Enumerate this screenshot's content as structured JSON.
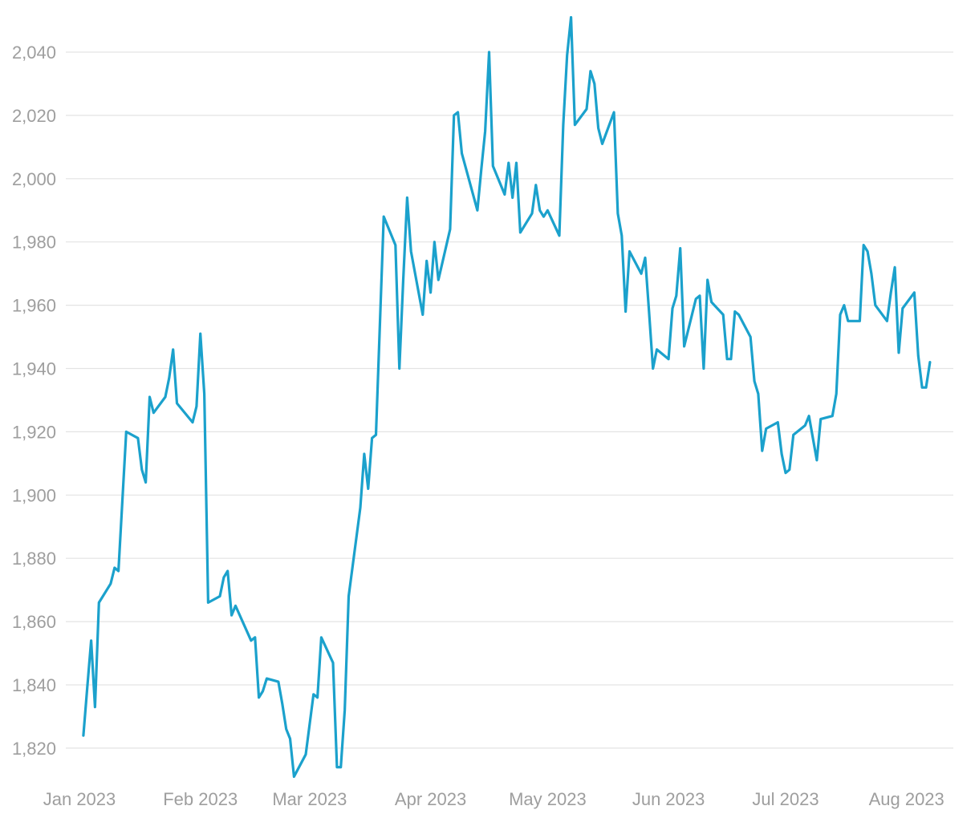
{
  "chart_data": {
    "type": "line",
    "title": "",
    "xlabel": "",
    "ylabel": "",
    "grid": true,
    "legend": "none",
    "line_color": "#1ba1cc",
    "ylim": [
      1810,
      2052
    ],
    "xlim": [
      "2023-01-01",
      "2023-08-06"
    ],
    "y_ticks": [
      1820,
      1840,
      1860,
      1880,
      1900,
      1920,
      1940,
      1960,
      1980,
      2000,
      2020,
      2040
    ],
    "y_tick_labels": [
      "1,820",
      "1,840",
      "1,860",
      "1,880",
      "1,900",
      "1,920",
      "1,940",
      "1,960",
      "1,980",
      "2,000",
      "2,020",
      "2,040"
    ],
    "x_ticks": [
      "2023-01-01",
      "2023-02-01",
      "2023-03-01",
      "2023-04-01",
      "2023-05-01",
      "2023-06-01",
      "2023-07-01",
      "2023-08-01"
    ],
    "x_tick_labels": [
      "Jan 2023",
      "Feb 2023",
      "Mar 2023",
      "Apr 2023",
      "May 2023",
      "Jun 2023",
      "Jul 2023",
      "Aug 2023"
    ],
    "series": [
      {
        "points": [
          [
            "2023-01-02",
            1824
          ],
          [
            "2023-01-03",
            1839
          ],
          [
            "2023-01-04",
            1854
          ],
          [
            "2023-01-05",
            1833
          ],
          [
            "2023-01-06",
            1866
          ],
          [
            "2023-01-09",
            1872
          ],
          [
            "2023-01-10",
            1877
          ],
          [
            "2023-01-11",
            1876
          ],
          [
            "2023-01-13",
            1920
          ],
          [
            "2023-01-16",
            1918
          ],
          [
            "2023-01-17",
            1908
          ],
          [
            "2023-01-18",
            1904
          ],
          [
            "2023-01-19",
            1931
          ],
          [
            "2023-01-20",
            1926
          ],
          [
            "2023-01-23",
            1931
          ],
          [
            "2023-01-24",
            1937
          ],
          [
            "2023-01-25",
            1946
          ],
          [
            "2023-01-26",
            1929
          ],
          [
            "2023-01-30",
            1923
          ],
          [
            "2023-01-31",
            1928
          ],
          [
            "2023-02-01",
            1951
          ],
          [
            "2023-02-02",
            1932
          ],
          [
            "2023-02-03",
            1866
          ],
          [
            "2023-02-06",
            1868
          ],
          [
            "2023-02-07",
            1874
          ],
          [
            "2023-02-08",
            1876
          ],
          [
            "2023-02-09",
            1862
          ],
          [
            "2023-02-10",
            1865
          ],
          [
            "2023-02-14",
            1854
          ],
          [
            "2023-02-15",
            1855
          ],
          [
            "2023-02-16",
            1836
          ],
          [
            "2023-02-17",
            1838
          ],
          [
            "2023-02-18",
            1842
          ],
          [
            "2023-02-21",
            1841
          ],
          [
            "2023-02-22",
            1834
          ],
          [
            "2023-02-23",
            1826
          ],
          [
            "2023-02-24",
            1823
          ],
          [
            "2023-02-25",
            1811
          ],
          [
            "2023-02-28",
            1818
          ],
          [
            "2023-03-02",
            1837
          ],
          [
            "2023-03-03",
            1836
          ],
          [
            "2023-03-04",
            1855
          ],
          [
            "2023-03-07",
            1847
          ],
          [
            "2023-03-08",
            1814
          ],
          [
            "2023-03-09",
            1814
          ],
          [
            "2023-03-10",
            1832
          ],
          [
            "2023-03-11",
            1868
          ],
          [
            "2023-03-14",
            1896
          ],
          [
            "2023-03-15",
            1913
          ],
          [
            "2023-03-16",
            1902
          ],
          [
            "2023-03-17",
            1918
          ],
          [
            "2023-03-18",
            1919
          ],
          [
            "2023-03-20",
            1988
          ],
          [
            "2023-03-23",
            1979
          ],
          [
            "2023-03-24",
            1940
          ],
          [
            "2023-03-25",
            1968
          ],
          [
            "2023-03-26",
            1994
          ],
          [
            "2023-03-27",
            1977
          ],
          [
            "2023-03-30",
            1957
          ],
          [
            "2023-03-31",
            1974
          ],
          [
            "2023-04-01",
            1964
          ],
          [
            "2023-04-02",
            1980
          ],
          [
            "2023-04-03",
            1968
          ],
          [
            "2023-04-06",
            1984
          ],
          [
            "2023-04-07",
            2020
          ],
          [
            "2023-04-08",
            2021
          ],
          [
            "2023-04-09",
            2008
          ],
          [
            "2023-04-13",
            1990
          ],
          [
            "2023-04-14",
            2003
          ],
          [
            "2023-04-15",
            2015
          ],
          [
            "2023-04-16",
            2040
          ],
          [
            "2023-04-17",
            2004
          ],
          [
            "2023-04-20",
            1995
          ],
          [
            "2023-04-21",
            2005
          ],
          [
            "2023-04-22",
            1994
          ],
          [
            "2023-04-23",
            2005
          ],
          [
            "2023-04-24",
            1983
          ],
          [
            "2023-04-27",
            1989
          ],
          [
            "2023-04-28",
            1998
          ],
          [
            "2023-04-29",
            1990
          ],
          [
            "2023-04-30",
            1988
          ],
          [
            "2023-05-01",
            1990
          ],
          [
            "2023-05-04",
            1982
          ],
          [
            "2023-05-05",
            2017
          ],
          [
            "2023-05-06",
            2039
          ],
          [
            "2023-05-07",
            2051
          ],
          [
            "2023-05-08",
            2017
          ],
          [
            "2023-05-11",
            2022
          ],
          [
            "2023-05-12",
            2034
          ],
          [
            "2023-05-13",
            2030
          ],
          [
            "2023-05-14",
            2016
          ],
          [
            "2023-05-15",
            2011
          ],
          [
            "2023-05-18",
            2021
          ],
          [
            "2023-05-19",
            1989
          ],
          [
            "2023-05-20",
            1982
          ],
          [
            "2023-05-21",
            1958
          ],
          [
            "2023-05-22",
            1977
          ],
          [
            "2023-05-25",
            1970
          ],
          [
            "2023-05-26",
            1975
          ],
          [
            "2023-05-27",
            1958
          ],
          [
            "2023-05-28",
            1940
          ],
          [
            "2023-05-29",
            1946
          ],
          [
            "2023-06-01",
            1943
          ],
          [
            "2023-06-02",
            1959
          ],
          [
            "2023-06-03",
            1963
          ],
          [
            "2023-06-04",
            1978
          ],
          [
            "2023-06-05",
            1947
          ],
          [
            "2023-06-08",
            1962
          ],
          [
            "2023-06-09",
            1963
          ],
          [
            "2023-06-10",
            1940
          ],
          [
            "2023-06-11",
            1968
          ],
          [
            "2023-06-12",
            1961
          ],
          [
            "2023-06-15",
            1957
          ],
          [
            "2023-06-16",
            1943
          ],
          [
            "2023-06-17",
            1943
          ],
          [
            "2023-06-18",
            1958
          ],
          [
            "2023-06-19",
            1957
          ],
          [
            "2023-06-22",
            1950
          ],
          [
            "2023-06-23",
            1936
          ],
          [
            "2023-06-24",
            1932
          ],
          [
            "2023-06-25",
            1914
          ],
          [
            "2023-06-26",
            1921
          ],
          [
            "2023-06-29",
            1923
          ],
          [
            "2023-06-30",
            1913
          ],
          [
            "2023-07-01",
            1907
          ],
          [
            "2023-07-02",
            1908
          ],
          [
            "2023-07-03",
            1919
          ],
          [
            "2023-07-06",
            1922
          ],
          [
            "2023-07-07",
            1925
          ],
          [
            "2023-07-08",
            1918
          ],
          [
            "2023-07-09",
            1911
          ],
          [
            "2023-07-10",
            1924
          ],
          [
            "2023-07-13",
            1925
          ],
          [
            "2023-07-14",
            1932
          ],
          [
            "2023-07-15",
            1957
          ],
          [
            "2023-07-16",
            1960
          ],
          [
            "2023-07-17",
            1955
          ],
          [
            "2023-07-20",
            1955
          ],
          [
            "2023-07-21",
            1979
          ],
          [
            "2023-07-22",
            1977
          ],
          [
            "2023-07-23",
            1970
          ],
          [
            "2023-07-24",
            1960
          ],
          [
            "2023-07-27",
            1955
          ],
          [
            "2023-07-28",
            1964
          ],
          [
            "2023-07-29",
            1972
          ],
          [
            "2023-07-30",
            1945
          ],
          [
            "2023-07-31",
            1959
          ],
          [
            "2023-08-03",
            1964
          ],
          [
            "2023-08-04",
            1944
          ],
          [
            "2023-08-05",
            1934
          ],
          [
            "2023-08-06",
            1934
          ],
          [
            "2023-08-07",
            1942
          ]
        ]
      }
    ]
  }
}
